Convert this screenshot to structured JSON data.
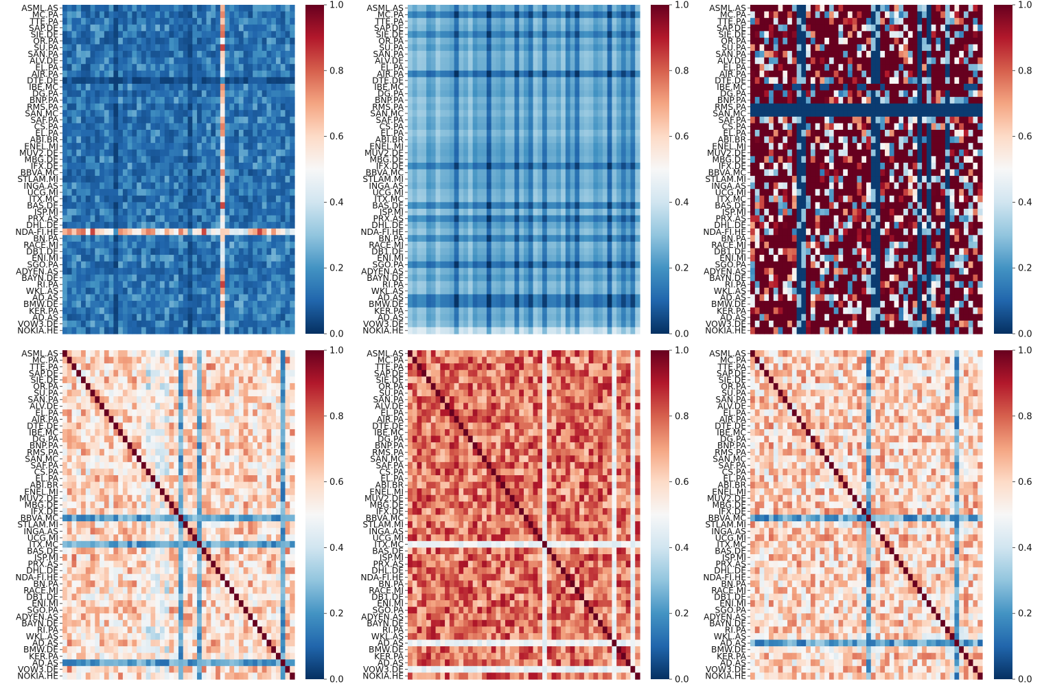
{
  "figure": {
    "colormap": "RdBu_r",
    "colors": {
      "low": "#053061",
      "mid": "#f7f7f7",
      "high": "#67001f"
    },
    "tickers": [
      "ASML.AS",
      "MC.PA",
      "TTE.PA",
      "SAP.DE",
      "SIE.DE",
      "OR.PA",
      "SU.PA",
      "SAN.PA",
      "ALV.DE",
      "EL.PA",
      "AIR.PA",
      "DTE.DE",
      "IBE.MC",
      "DG.PA",
      "BNP.PA",
      "RMS.PA",
      "SAN.MC",
      "SAF.PA",
      "CS.PA",
      "EL.PA",
      "ABI.BR",
      "ENEL.MI",
      "MUV2.DE",
      "MBG.DE",
      "IFX.DE",
      "BBVA.MC",
      "STLAM.MI",
      "INGA.AS",
      "UCG.MI",
      "ITX.MC",
      "BAS.DE",
      "ISP.MI",
      "PRX.AS",
      "DHL.DE",
      "NDA-FI.HE",
      "BN.PA",
      "RACE.MI",
      "DB1.DE",
      "ENI.MI",
      "SGO.PA",
      "ADYEN.AS",
      "BAYN.DE",
      "RI.PA",
      "WKL.AS",
      "AD.AS",
      "BMW.DE",
      "KER.PA",
      "AD.AS",
      "VOW3.DE",
      "NOKIA.HE"
    ],
    "colorbar_ticks": [
      "0.0",
      "0.2",
      "0.4",
      "0.6",
      "0.8",
      "1.0"
    ]
  },
  "chart_data": [
    {
      "type": "heatmap",
      "panel": 1,
      "value_range": [
        0,
        1
      ],
      "profile": "low",
      "description_values": "mostly 0.0-0.3, NDA-FI.HE row/col elevated up to ~0.9"
    },
    {
      "type": "heatmap",
      "panel": 2,
      "value_range": [
        0,
        1
      ],
      "profile": "low-striped",
      "description_values": "0.05-0.35 with column stripes"
    },
    {
      "type": "heatmap",
      "panel": 3,
      "value_range": [
        0,
        1
      ],
      "profile": "binary",
      "description_values": "mostly 1.0 with blue stripes near 0.0"
    },
    {
      "type": "heatmap",
      "panel": 4,
      "value_range": [
        0,
        1
      ],
      "profile": "corr",
      "diagonal": 1.0
    },
    {
      "type": "heatmap",
      "panel": 5,
      "value_range": [
        0,
        1
      ],
      "profile": "corr-high",
      "diagonal": 1.0
    },
    {
      "type": "heatmap",
      "panel": 6,
      "value_range": [
        0,
        1
      ],
      "profile": "corr",
      "diagonal": 1.0
    }
  ]
}
